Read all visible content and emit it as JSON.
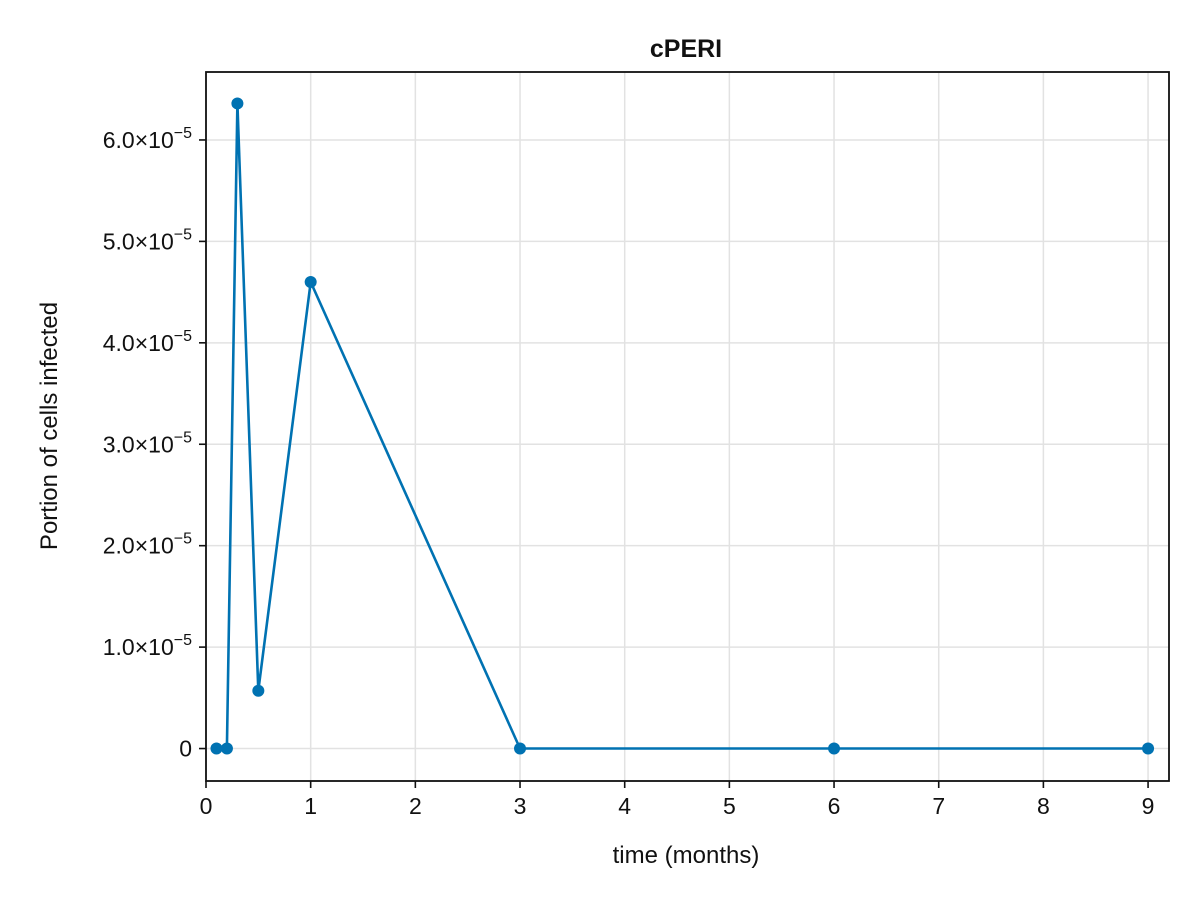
{
  "chart_data": {
    "type": "line",
    "title": "cPERI",
    "xlabel": "time (months)",
    "ylabel": "Portion of cells infected",
    "xlim": [
      0,
      9.2
    ],
    "ylim": [
      -3.2e-06,
      6.67e-05
    ],
    "x_ticks": [
      0,
      1,
      2,
      3,
      4,
      5,
      6,
      7,
      8,
      9
    ],
    "x_tick_labels": [
      "0",
      "1",
      "2",
      "3",
      "4",
      "5",
      "6",
      "7",
      "8",
      "9"
    ],
    "y_ticks": [
      0,
      1e-05,
      2e-05,
      3e-05,
      4e-05,
      5e-05,
      6e-05
    ],
    "y_tick_labels": [
      {
        "mantissa": "0",
        "exponent": ""
      },
      {
        "mantissa": "1.0×10",
        "exponent": "−5"
      },
      {
        "mantissa": "2.0×10",
        "exponent": "−5"
      },
      {
        "mantissa": "3.0×10",
        "exponent": "−5"
      },
      {
        "mantissa": "4.0×10",
        "exponent": "−5"
      },
      {
        "mantissa": "5.0×10",
        "exponent": "−5"
      },
      {
        "mantissa": "6.0×10",
        "exponent": "−5"
      }
    ],
    "grid": true,
    "series": [
      {
        "name": "cPERI",
        "color": "#0072b2",
        "x": [
          0.1,
          0.2,
          0.3,
          0.5,
          1,
          3,
          6,
          9
        ],
        "y": [
          0,
          0,
          6.36e-05,
          5.7e-06,
          4.6e-05,
          0,
          0,
          0
        ]
      }
    ]
  }
}
